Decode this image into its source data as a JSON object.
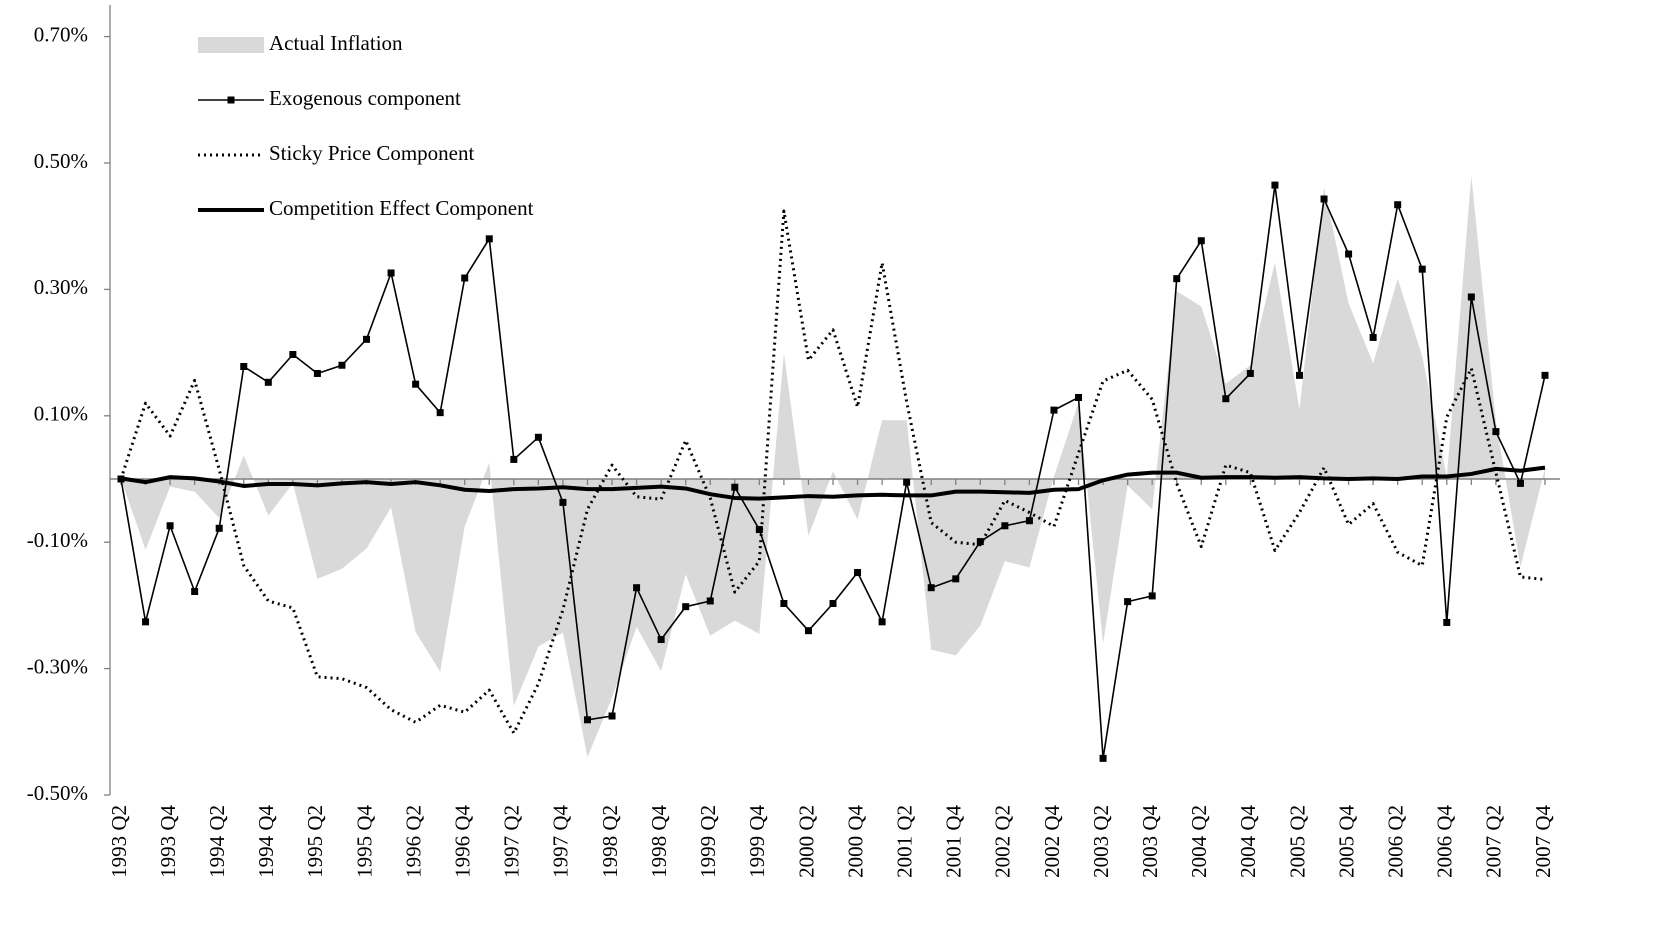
{
  "chart_data": {
    "type": "line",
    "categories": [
      "1993 Q2",
      null,
      "1993 Q4",
      null,
      "1994 Q2",
      null,
      "1994 Q4",
      null,
      "1995 Q2",
      null,
      "1995 Q4",
      null,
      "1996 Q2",
      null,
      "1996 Q4",
      null,
      "1997 Q2",
      null,
      "1997 Q4",
      null,
      "1998 Q2",
      null,
      "1998 Q4",
      null,
      "1999 Q2",
      null,
      "1999 Q4",
      null,
      "2000 Q2",
      null,
      "2000 Q4",
      null,
      "2001 Q2",
      null,
      "2001 Q4",
      null,
      "2002 Q2",
      null,
      "2002 Q4",
      null,
      "2003 Q2",
      null,
      "2003 Q4",
      null,
      "2004 Q2",
      null,
      "2004 Q4",
      null,
      "2005 Q2",
      null,
      "2005 Q4",
      null,
      "2006 Q2",
      null,
      "2006 Q4",
      null,
      "2007 Q2",
      null,
      "2007 Q4"
    ],
    "ylim": [
      -0.5,
      0.75
    ],
    "yticks": [
      {
        "value": 0.7,
        "label": "0.70%"
      },
      {
        "value": 0.5,
        "label": "0.50%"
      },
      {
        "value": 0.3,
        "label": "0.30%"
      },
      {
        "value": 0.1,
        "label": "0.10%"
      },
      {
        "value": -0.1,
        "label": "-0.10%"
      },
      {
        "value": -0.3,
        "label": "-0.30%"
      },
      {
        "value": -0.5,
        "label": "-0.50%"
      }
    ],
    "legend": "upper left",
    "series": [
      {
        "name": "Actual Inflation",
        "kind": "area",
        "color": "#d9d9d9",
        "values": [
          0,
          -0.112,
          -0.012,
          -0.02,
          -0.062,
          0.037,
          -0.058,
          -0.007,
          -0.158,
          -0.142,
          -0.11,
          -0.045,
          -0.242,
          -0.305,
          -0.075,
          0.026,
          -0.359,
          -0.265,
          -0.243,
          -0.44,
          -0.346,
          -0.234,
          -0.304,
          -0.151,
          -0.248,
          -0.224,
          -0.245,
          0.199,
          -0.09,
          0.012,
          -0.064,
          0.093,
          0.093,
          -0.27,
          -0.279,
          -0.232,
          -0.13,
          -0.14,
          0.004,
          0.121,
          -0.26,
          -0.01,
          -0.048,
          0.297,
          0.273,
          0.151,
          0.18,
          0.343,
          0.11,
          0.462,
          0.278,
          0.183,
          0.317,
          0.194,
          0.003,
          0.48,
          0.091,
          -0.139,
          0.017
        ]
      },
      {
        "name": "Exogenous component",
        "kind": "line",
        "marker": "square",
        "width": 1.6,
        "color": "#000000",
        "values": [
          0,
          -0.226,
          -0.074,
          -0.178,
          -0.078,
          0.178,
          0.153,
          0.197,
          0.167,
          0.18,
          0.221,
          0.326,
          0.15,
          0.105,
          0.318,
          0.38,
          0.031,
          0.066,
          -0.037,
          -0.381,
          -0.375,
          -0.172,
          -0.254,
          -0.202,
          -0.193,
          -0.013,
          -0.08,
          -0.197,
          -0.24,
          -0.197,
          -0.148,
          -0.226,
          -0.005,
          -0.172,
          -0.158,
          -0.099,
          -0.074,
          -0.066,
          0.109,
          0.129,
          -0.442,
          -0.194,
          -0.185,
          0.317,
          0.377,
          0.127,
          0.167,
          0.465,
          0.164,
          0.443,
          0.356,
          0.224,
          0.434,
          0.332,
          -0.227,
          0.288,
          0.075,
          -0.007,
          0.164
        ]
      },
      {
        "name": "Sticky Price Component",
        "kind": "line",
        "dash": "dotted",
        "width": 3,
        "color": "#000000",
        "values": [
          0,
          0.12,
          0.068,
          0.156,
          0.015,
          -0.137,
          -0.193,
          -0.204,
          -0.313,
          -0.316,
          -0.33,
          -0.365,
          -0.385,
          -0.358,
          -0.369,
          -0.334,
          -0.402,
          -0.324,
          -0.207,
          -0.048,
          0.022,
          -0.028,
          -0.032,
          0.061,
          -0.03,
          -0.179,
          -0.13,
          0.424,
          0.188,
          0.236,
          0.114,
          0.342,
          0.122,
          -0.069,
          -0.1,
          -0.104,
          -0.034,
          -0.053,
          -0.075,
          0.041,
          0.155,
          0.172,
          0.126,
          -0.007,
          -0.107,
          0.022,
          0.01,
          -0.113,
          -0.053,
          0.018,
          -0.072,
          -0.039,
          -0.116,
          -0.137,
          0.098,
          0.175,
          0.01,
          -0.155,
          -0.159
        ]
      },
      {
        "name": "Competition Effect Component",
        "kind": "line",
        "width": 4,
        "color": "#000000",
        "values": [
          0.001,
          -0.005,
          0.003,
          0.001,
          -0.004,
          -0.011,
          -0.008,
          -0.008,
          -0.01,
          -0.007,
          -0.005,
          -0.008,
          -0.005,
          -0.01,
          -0.017,
          -0.019,
          -0.016,
          -0.015,
          -0.013,
          -0.016,
          -0.016,
          -0.014,
          -0.012,
          -0.015,
          -0.024,
          -0.03,
          -0.031,
          -0.029,
          -0.027,
          -0.028,
          -0.026,
          -0.025,
          -0.026,
          -0.026,
          -0.02,
          -0.02,
          -0.021,
          -0.022,
          -0.017,
          -0.016,
          -0.002,
          0.007,
          0.01,
          0.01,
          0.002,
          0.003,
          0.003,
          0.002,
          0.003,
          0.001,
          0,
          0.001,
          0,
          0.004,
          0.004,
          0.008,
          0.016,
          0.013,
          0.018
        ]
      }
    ]
  }
}
